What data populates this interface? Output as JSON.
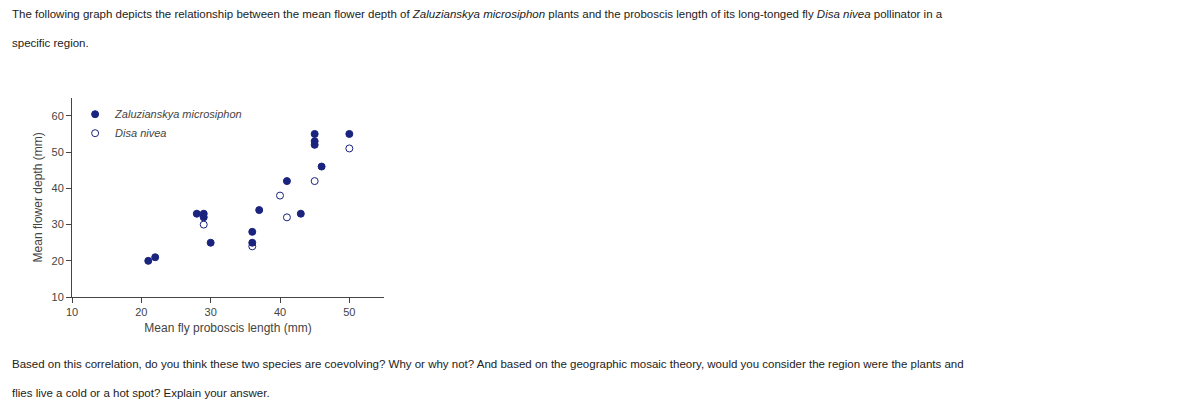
{
  "chart_data": {
    "type": "scatter",
    "annotations": [
      "The following graph depicts the relationship between the mean flower depth of Zaluzianskya microsiphon plants and the proboscis length of its long-tonged fly Disa nivea pollinator in a",
      "specific region.",
      "Based on this correlation, do you think these two species are coevolving? Why or why not? And based on the geographic mosaic theory, would you consider the region were the plants and",
      "flies live a cold or a hot spot? Explain your answer."
    ],
    "xlabel": "Mean fly proboscis length (mm)",
    "ylabel": "Mean flower depth (mm)",
    "xlim": [
      10,
      55
    ],
    "ylim": [
      10,
      65
    ],
    "xticks": [
      10,
      20,
      30,
      40,
      50
    ],
    "yticks": [
      10,
      20,
      30,
      40,
      50,
      60
    ],
    "grid": false,
    "legend": "upper left",
    "series": [
      {
        "name": "Zaluzianskya microsiphon",
        "color": "#1a237e",
        "marker": "circle",
        "x": [
          21,
          22,
          28,
          29,
          29,
          30,
          36,
          36,
          37,
          41,
          43,
          45,
          45,
          45,
          46,
          50
        ],
        "values": [
          20,
          21,
          33,
          32,
          33,
          25,
          25,
          28,
          34,
          42,
          33,
          52,
          53,
          55,
          46,
          55
        ]
      },
      {
        "name": "Disa nivea",
        "color": "#1a237e",
        "marker": "circle-open",
        "x": [
          29,
          36,
          40,
          41,
          45,
          50
        ],
        "values": [
          30,
          24,
          38,
          32,
          42,
          51
        ]
      }
    ]
  }
}
